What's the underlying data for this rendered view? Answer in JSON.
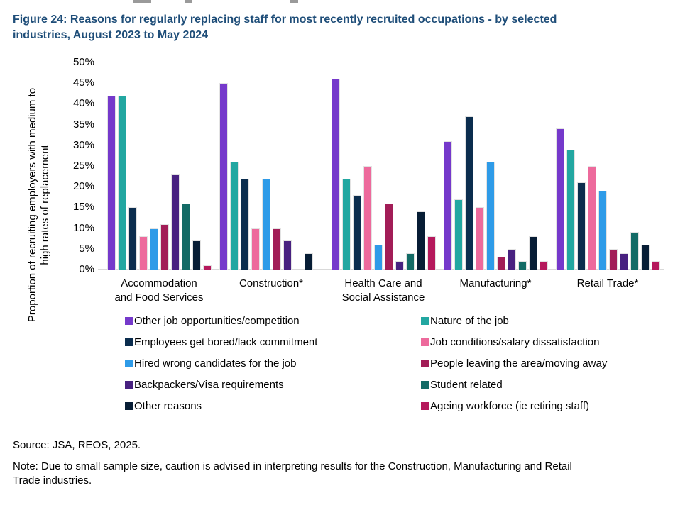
{
  "title": "Figure 24: Reasons for regularly replacing staff for most recently recruited occupations - by selected\nindustries, August 2023 to May 2024",
  "title_color": "#1F4E79",
  "axis_line_color": "#D9D9D9",
  "source": "Source: JSA, REOS, 2025.",
  "note": "Note: Due to small sample size, caution is advised in interpreting results for the Construction, Manufacturing and Retail\nTrade industries.",
  "chart_data": {
    "type": "bar",
    "title": "Figure 24: Reasons for regularly replacing staff for most recently recruited occupations - by selected industries, August 2023 to May 2024",
    "ylabel": "Proportion of recruiting employers with medium to high rates of replacement",
    "ylabel_lines": "Proportion of recruiting employers with medium to\nhigh rates of replacement",
    "xlabel": "",
    "ylim": [
      0,
      50
    ],
    "ytick_step": 5,
    "yticks": [
      "0%",
      "5%",
      "10%",
      "15%",
      "20%",
      "25%",
      "30%",
      "35%",
      "40%",
      "45%",
      "50%"
    ],
    "grid": false,
    "legend_position": "bottom-two-columns",
    "categories": [
      "Accommodation\nand Food Services",
      "Construction*",
      "Health Care and\nSocial Assistance",
      "Manufacturing*",
      "Retail Trade*"
    ],
    "series": [
      {
        "name": "Other job opportunities/competition",
        "color": "#7539CB",
        "values": [
          42,
          45,
          46,
          31,
          34
        ]
      },
      {
        "name": "Nature of the job",
        "color": "#22A7A1",
        "values": [
          42,
          26,
          22,
          17,
          29
        ]
      },
      {
        "name": "Employees get bored/lack commitment",
        "color": "#0B2D4E",
        "values": [
          15,
          22,
          18,
          37,
          21
        ]
      },
      {
        "name": "Job conditions/salary dissatisfaction",
        "color": "#ED6A9C",
        "values": [
          8,
          10,
          25,
          15,
          25
        ]
      },
      {
        "name": "Hired wrong candidates for the job",
        "color": "#2E9BE8",
        "values": [
          10,
          22,
          6,
          26,
          19
        ]
      },
      {
        "name": "People leaving the area/moving away",
        "color": "#A21D57",
        "values": [
          11,
          10,
          16,
          3,
          5
        ]
      },
      {
        "name": "Backpackers/Visa requirements",
        "color": "#482180",
        "values": [
          23,
          7,
          2,
          5,
          4
        ]
      },
      {
        "name": "Student related",
        "color": "#136B66",
        "values": [
          16,
          0,
          4,
          2,
          9
        ]
      },
      {
        "name": "Other reasons",
        "color": "#071D35",
        "values": [
          7,
          4,
          14,
          8,
          6
        ]
      },
      {
        "name": "Ageing workforce (ie retiring staff)",
        "color": "#B5195C",
        "values": [
          1,
          0,
          8,
          2,
          2
        ]
      }
    ]
  }
}
